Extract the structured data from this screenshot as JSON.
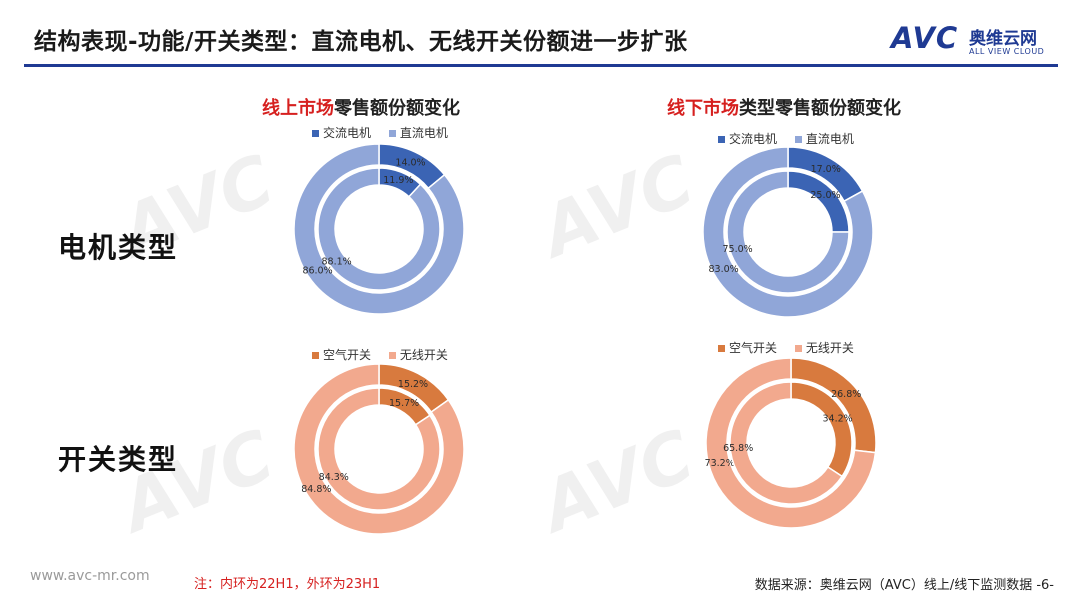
{
  "header": {
    "title": "结构表现-功能/开关类型：直流电机、无线开关份额进一步扩张",
    "logo": {
      "mark": "AVC",
      "cn": "奥维云网",
      "en": "ALL VIEW CLOUD"
    }
  },
  "rows": {
    "motor_label": "电机类型",
    "switch_label": "开关类型"
  },
  "watermark_text": "AVC",
  "colors": {
    "ac_motor": "#3b64b4",
    "dc_motor": "#90a6d8",
    "air_switch": "#d87a3e",
    "wireless_switch": "#f2a98e",
    "accent_red": "#d6201f",
    "brand_blue": "#1f3a93"
  },
  "chart_data": [
    {
      "type": "pie",
      "subtype": "double-donut",
      "title_highlight": "线上市场",
      "title_rest": "零售额份额变化",
      "legend": [
        "交流电机",
        "直流电机"
      ],
      "outer": {
        "period": "23H1",
        "values": [
          14.0,
          86.0
        ],
        "labels": [
          "14.0%",
          "86.0%"
        ]
      },
      "inner": {
        "period": "22H1",
        "values": [
          11.9,
          88.1
        ],
        "labels": [
          "11.9%",
          "88.1%"
        ]
      }
    },
    {
      "type": "pie",
      "subtype": "double-donut",
      "title_highlight": "线下市场",
      "title_rest": "类型零售额份额变化",
      "legend": [
        "交流电机",
        "直流电机"
      ],
      "outer": {
        "period": "23H1",
        "values": [
          17.0,
          83.0
        ],
        "labels": [
          "17.0%",
          "83.0%"
        ]
      },
      "inner": {
        "period": "22H1",
        "values": [
          25.0,
          75.0
        ],
        "labels": [
          "25.0%",
          "75.0%"
        ]
      }
    },
    {
      "type": "pie",
      "subtype": "double-donut",
      "title_highlight": "",
      "title_rest": "",
      "legend": [
        "空气开关",
        "无线开关"
      ],
      "outer": {
        "period": "23H1",
        "values": [
          15.2,
          84.8
        ],
        "labels": [
          "15.2%",
          "84.8%"
        ]
      },
      "inner": {
        "period": "22H1",
        "values": [
          15.7,
          84.3
        ],
        "labels": [
          "15.7%",
          "84.3%"
        ]
      }
    },
    {
      "type": "pie",
      "subtype": "double-donut",
      "title_highlight": "",
      "title_rest": "",
      "legend": [
        "空气开关",
        "无线开关"
      ],
      "outer": {
        "period": "23H1",
        "values": [
          26.8,
          73.2
        ],
        "labels": [
          "26.8%",
          "73.2%"
        ]
      },
      "inner": {
        "period": "22H1",
        "values": [
          34.2,
          65.8
        ],
        "labels": [
          "34.2%",
          "65.8%"
        ]
      }
    }
  ],
  "footer": {
    "url": "www.avc-mr.com",
    "note": "注：内环为22H1，外环为23H1",
    "source": "数据来源：奥维云网（AVC）线上/线下监测数据 -6-"
  }
}
